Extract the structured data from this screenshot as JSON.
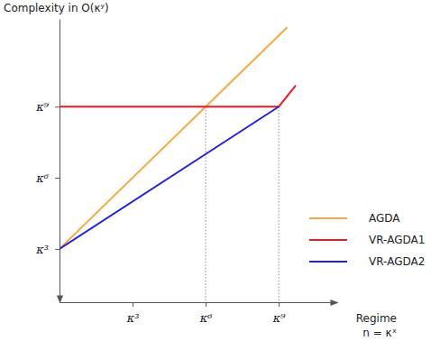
{
  "chart_data": {
    "type": "line",
    "ylabel": "Complexity in O(κʸ)",
    "xlabel": [
      "Regime",
      "n = κˣ"
    ],
    "xlim": [
      0,
      11.4
    ],
    "ylim": [
      0.75,
      12.7
    ],
    "xticks": [
      {
        "value": 3,
        "label": "κ³"
      },
      {
        "value": 6,
        "label": "κ⁶"
      },
      {
        "value": 9,
        "label": "κ⁹"
      }
    ],
    "yticks": [
      {
        "value": 3,
        "label": "κ³"
      },
      {
        "value": 6,
        "label": "κ⁶"
      },
      {
        "value": 9,
        "label": "κ⁹"
      }
    ],
    "grid": false,
    "legend": "lower right",
    "series": [
      {
        "name": "AGDA",
        "color": "#f7a83e",
        "marker": "none",
        "line_style": "solid",
        "x": [
          0,
          9.35
        ],
        "values": [
          3,
          12.35
        ]
      },
      {
        "name": "VR-AGDA1",
        "color": "#ec1c24",
        "marker": "none",
        "line_style": "solid",
        "x": [
          0,
          9,
          9.7
        ],
        "values": [
          9,
          9,
          9.9
        ]
      },
      {
        "name": "VR-AGDA2",
        "color": "#2121dd",
        "marker": "none",
        "line_style": "solid",
        "x": [
          0,
          9
        ],
        "values": [
          3,
          9
        ]
      }
    ]
  }
}
